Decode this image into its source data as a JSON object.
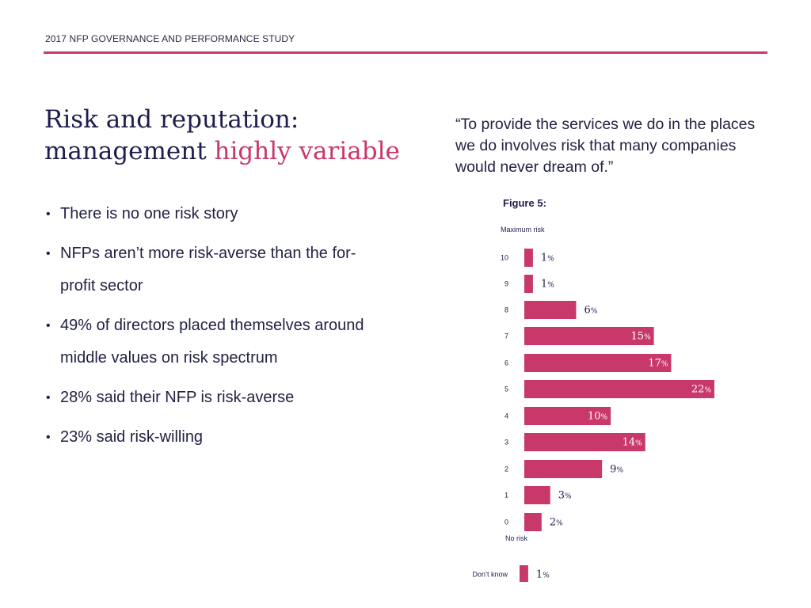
{
  "header": {
    "study_title": "2017 NFP GOVERNANCE AND PERFORMANCE STUDY"
  },
  "title": {
    "line1": "Risk and reputation:",
    "line2_main": "management ",
    "line2_accent": "highly variable"
  },
  "bullets": [
    {
      "text": "There is no one risk story"
    },
    {
      "text": "NFPs aren’t more risk-averse than the for-profit sector"
    },
    {
      "text": "49% of directors placed themselves around middle values on risk spectrum"
    },
    {
      "text": "28% said their NFP is risk-averse"
    },
    {
      "text": "23% said risk-willing"
    }
  ],
  "bullet_symbol": "•",
  "quote": "“To provide the services we do in the places we do involves risk that many companies would never dream of.”",
  "figure_label": "Figure 5:",
  "colors": {
    "accent": "#c8386a",
    "navy": "#1f1d4d"
  },
  "chart_data": {
    "type": "bar",
    "orientation": "horizontal",
    "top_label": "Maximum risk",
    "bottom_label": "No risk",
    "categories": [
      "10",
      "9",
      "8",
      "7",
      "6",
      "5",
      "4",
      "3",
      "2",
      "1",
      "0",
      "Don’t know"
    ],
    "values": [
      1,
      1,
      6,
      15,
      17,
      22,
      10,
      14,
      9,
      3,
      2,
      1
    ],
    "value_suffix": "%",
    "xlim": [
      0,
      22
    ]
  }
}
